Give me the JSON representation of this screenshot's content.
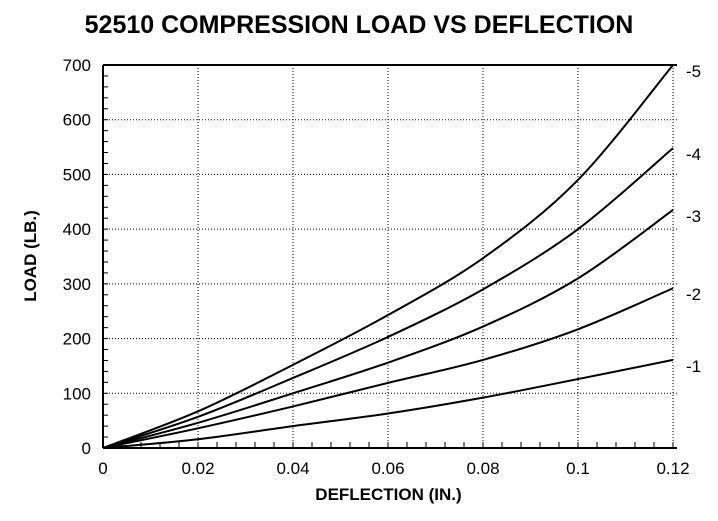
{
  "chart_data": {
    "type": "line",
    "title": "52510 COMPRESSION LOAD VS DEFLECTION",
    "xlabel": "DEFLECTION (IN.)",
    "ylabel": "LOAD (LB.)",
    "xlim": [
      0,
      0.12
    ],
    "ylim": [
      0,
      700
    ],
    "grid": true,
    "xticks": [
      "0",
      "0.02",
      "0.04",
      "0.06",
      "0.08",
      "0.1",
      "0.12"
    ],
    "yticks": [
      "0",
      "100",
      "200",
      "300",
      "400",
      "500",
      "600",
      "700"
    ],
    "x": [
      0,
      0.02,
      0.04,
      0.06,
      0.08,
      0.1,
      0.12
    ],
    "series": [
      {
        "name": "-1",
        "values": [
          0,
          16,
          40,
          63,
          92,
          126,
          161
        ]
      },
      {
        "name": "-2",
        "values": [
          0,
          36,
          76,
          119,
          161,
          217,
          292
        ]
      },
      {
        "name": "-3",
        "values": [
          0,
          46,
          100,
          156,
          222,
          310,
          435
        ]
      },
      {
        "name": "-4",
        "values": [
          0,
          57,
          128,
          203,
          290,
          400,
          548
        ]
      },
      {
        "name": "-5",
        "values": [
          0,
          67,
          152,
          243,
          347,
          490,
          700
        ]
      }
    ]
  }
}
